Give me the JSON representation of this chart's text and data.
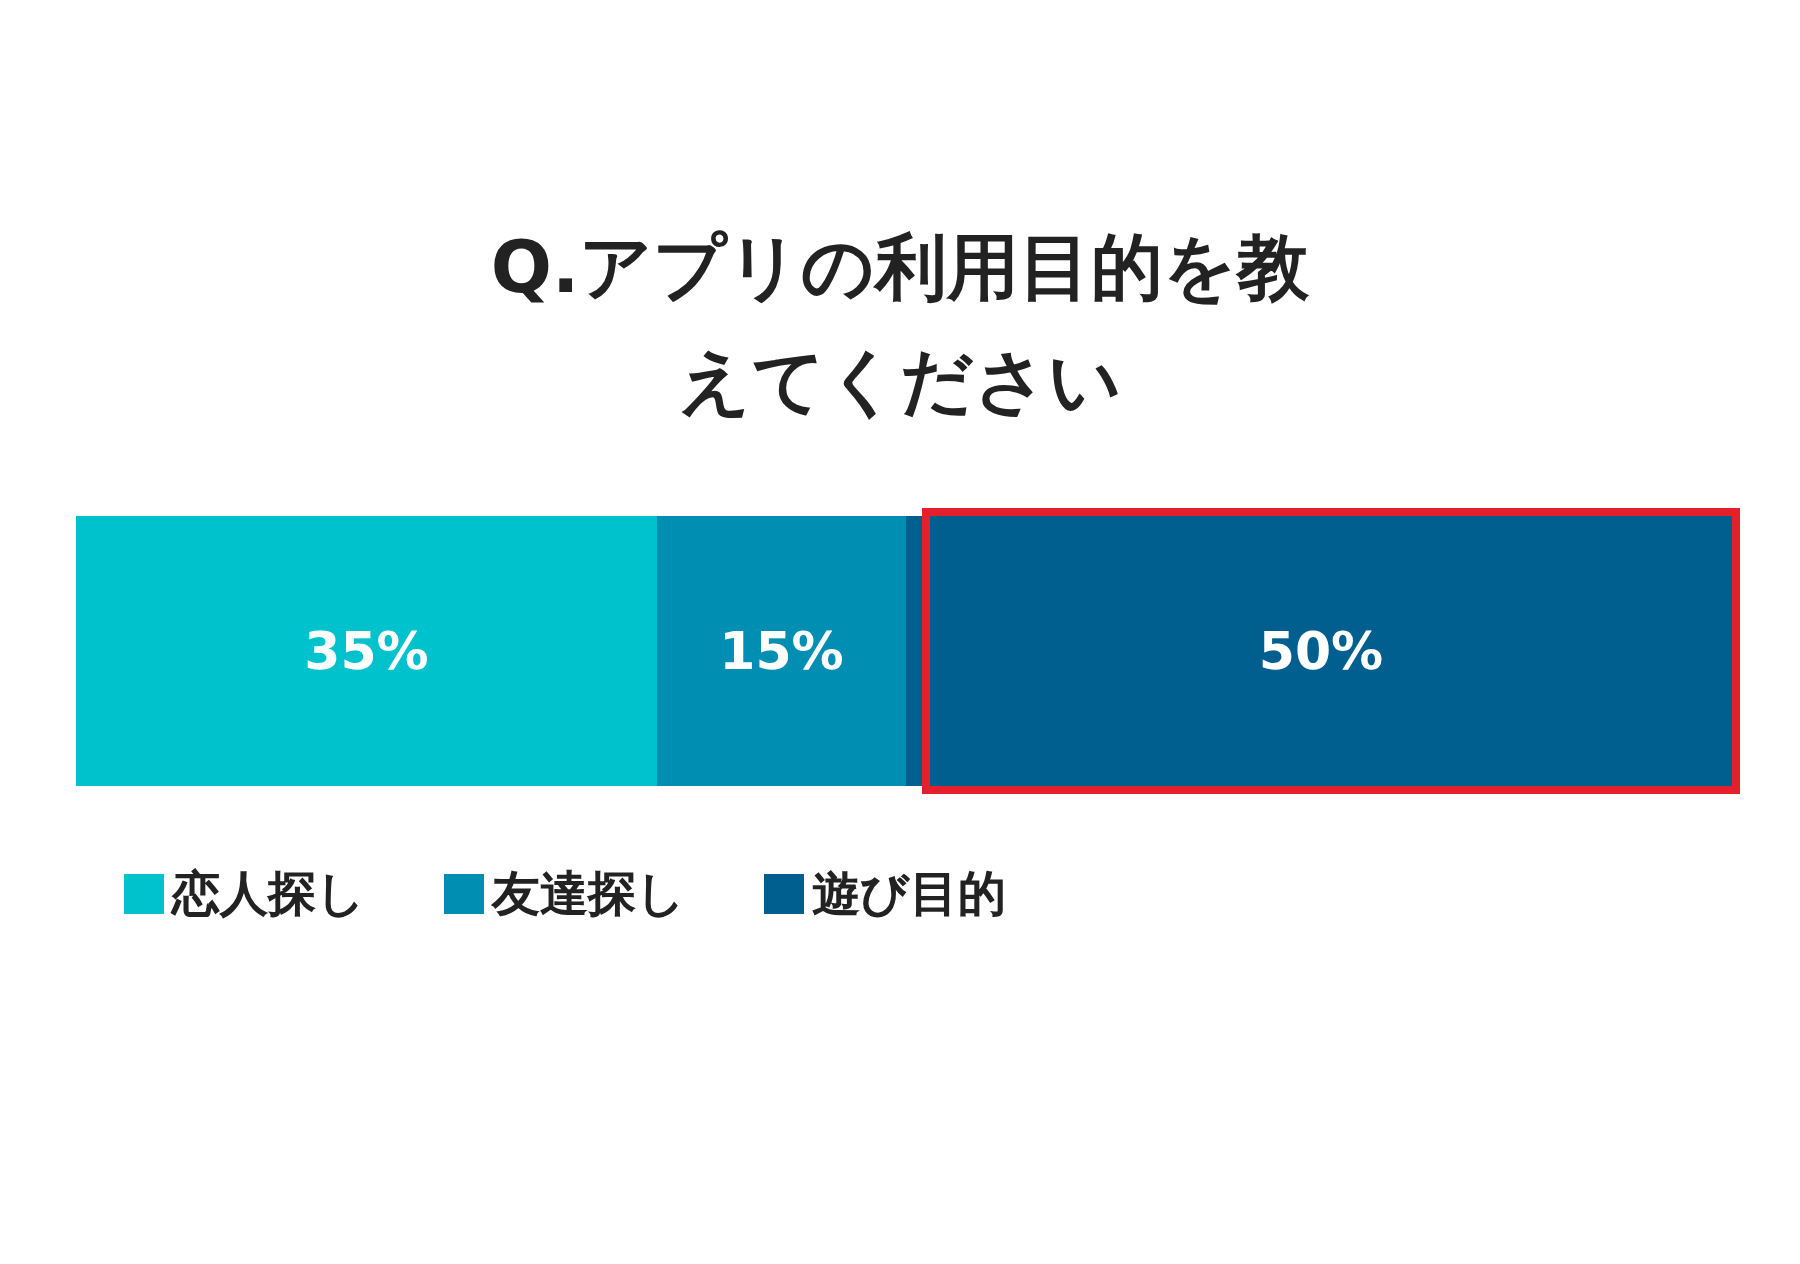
{
  "chart_data": {
    "type": "bar",
    "orientation": "horizontal",
    "stacked": true,
    "title": "Q.アプリの利用目的を教えてください",
    "categories": [
      null
    ],
    "series": [
      {
        "name": "恋人探し",
        "color": "#00c2cc",
        "values": [
          35
        ],
        "value_labels": [
          "35%"
        ]
      },
      {
        "name": "友達探し",
        "color": "#008fb2",
        "values": [
          15
        ],
        "value_labels": [
          "15%"
        ]
      },
      {
        "name": "遊び目的",
        "color": "#005f8e",
        "values": [
          50
        ],
        "value_labels": [
          "50%"
        ]
      }
    ],
    "legend": "bottom left",
    "tick_labels": false
  }
}
